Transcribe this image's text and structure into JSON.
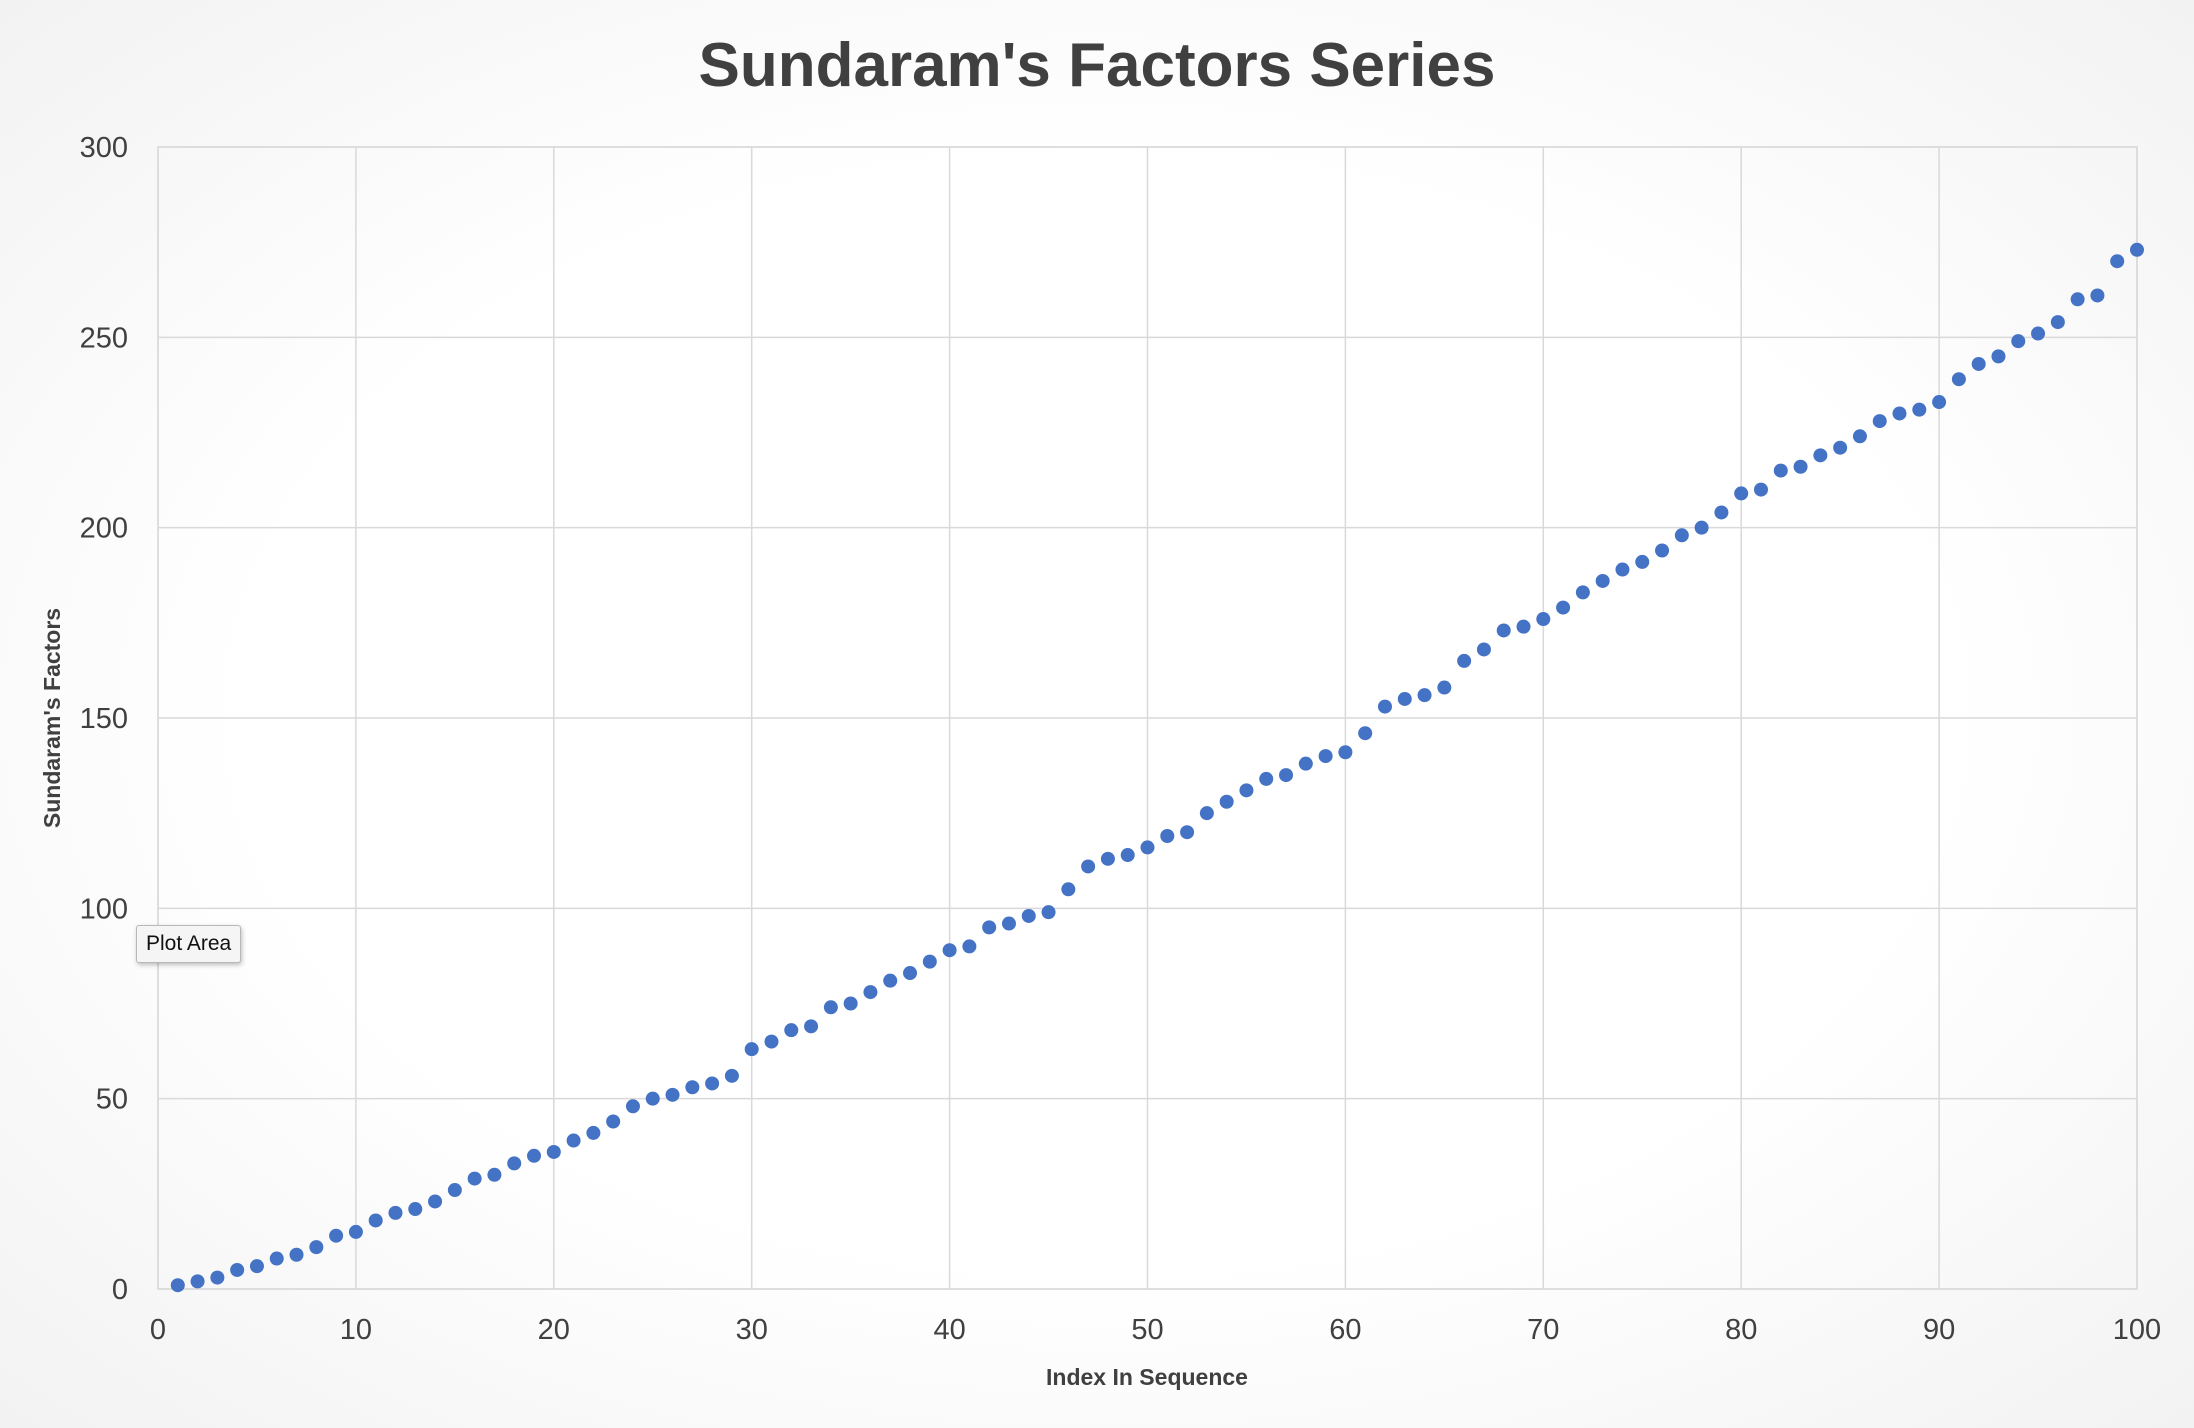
{
  "chart_data": {
    "type": "scatter",
    "title": "Sundaram's Factors Series",
    "xlabel": "Index In Sequence",
    "ylabel": "Sundaram's Factors",
    "xlim": [
      0,
      100
    ],
    "ylim": [
      0,
      300
    ],
    "x_ticks": [
      "0",
      "10",
      "20",
      "30",
      "40",
      "50",
      "60",
      "70",
      "80",
      "90",
      "100"
    ],
    "y_ticks": [
      "0",
      "50",
      "100",
      "150",
      "200",
      "250",
      "300"
    ],
    "grid": true,
    "legend": "none",
    "marker_color": "#4472c4",
    "x": [
      1,
      2,
      3,
      4,
      5,
      6,
      7,
      8,
      9,
      10,
      11,
      12,
      13,
      14,
      15,
      16,
      17,
      18,
      19,
      20,
      21,
      22,
      23,
      24,
      25,
      26,
      27,
      28,
      29,
      30,
      31,
      32,
      33,
      34,
      35,
      36,
      37,
      38,
      39,
      40,
      41,
      42,
      43,
      44,
      45,
      46,
      47,
      48,
      49,
      50,
      51,
      52,
      53,
      54,
      55,
      56,
      57,
      58,
      59,
      60,
      61,
      62,
      63,
      64,
      65,
      66,
      67,
      68,
      69,
      70,
      71,
      72,
      73,
      74,
      75,
      76,
      77,
      78,
      79,
      80,
      81,
      82,
      83,
      84,
      85,
      86,
      87,
      88,
      89,
      90,
      91,
      92,
      93,
      94,
      95,
      96,
      97,
      98,
      99,
      100
    ],
    "y": [
      1,
      2,
      3,
      5,
      6,
      8,
      9,
      11,
      14,
      15,
      18,
      20,
      21,
      23,
      26,
      29,
      30,
      33,
      35,
      36,
      39,
      41,
      44,
      48,
      50,
      51,
      53,
      54,
      56,
      63,
      65,
      68,
      69,
      74,
      75,
      78,
      81,
      83,
      86,
      89,
      90,
      95,
      96,
      98,
      99,
      105,
      111,
      113,
      114,
      116,
      119,
      120,
      125,
      128,
      131,
      134,
      135,
      138,
      140,
      141,
      146,
      153,
      155,
      156,
      158,
      165,
      168,
      173,
      174,
      176,
      179,
      183,
      186,
      189,
      191,
      194,
      198,
      200,
      204,
      209,
      210,
      215,
      216,
      219,
      221,
      224,
      228,
      230,
      231,
      233,
      239,
      243,
      245,
      249,
      251,
      254,
      260,
      261,
      270,
      273
    ]
  },
  "tooltip": {
    "label": "Plot Area"
  }
}
